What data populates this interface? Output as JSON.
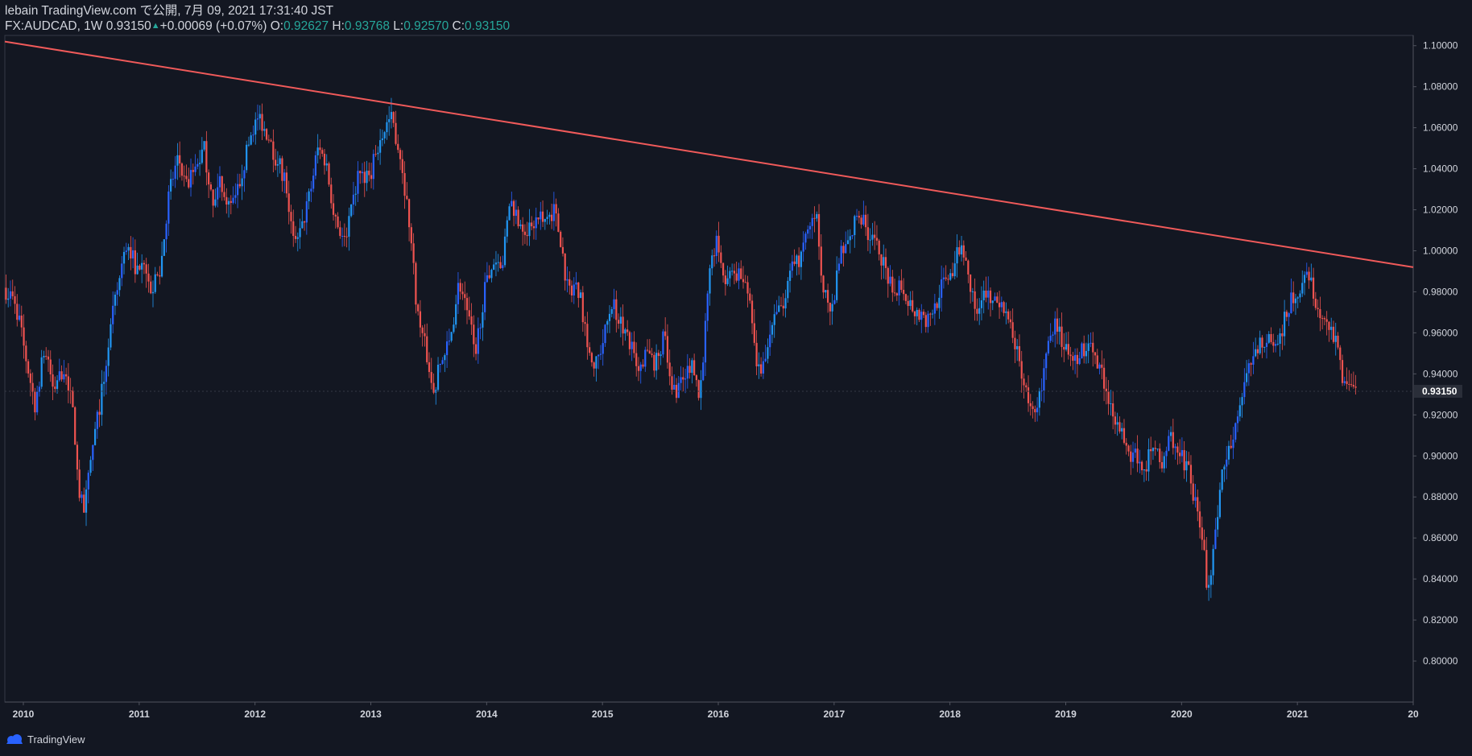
{
  "header": {
    "publisher": "lebain TradingView.com で公開, 7月 09, 2021 17:31:40 JST",
    "symbol_info": "FX:AUDCAD, 1W 0.93150",
    "change": "+0.00069 (+0.07%)",
    "o_label": "O:",
    "o_value": "0.92627",
    "h_label": "H:",
    "h_value": "0.93768",
    "l_label": "L:",
    "l_value": "0.92570",
    "c_label": "C:",
    "c_value": "0.93150"
  },
  "footer": {
    "brand": "TradingView"
  },
  "colors": {
    "background": "#131722",
    "up": "#2962ff",
    "up_alt": "#2196f3",
    "down": "#ef5350",
    "trendline": "#f05a5a",
    "axis_text": "#d1d4dc",
    "ohlc_value": "#26a69a"
  },
  "chart_data": {
    "type": "candlestick",
    "timeframe": "1W",
    "symbol": "FX:AUDCAD",
    "x_ticks": [
      "2010",
      "2011",
      "2012",
      "2013",
      "2014",
      "2015",
      "2016",
      "2017",
      "2018",
      "2019",
      "2020",
      "2021",
      "20"
    ],
    "y_ticks": [
      "1.10000",
      "1.08000",
      "1.06000",
      "1.04000",
      "1.02000",
      "1.00000",
      "0.98000",
      "0.96000",
      "0.94000",
      "0.92000",
      "0.90000",
      "0.88000",
      "0.86000",
      "0.84000",
      "0.82000",
      "0.80000"
    ],
    "ylim": [
      0.78,
      1.105
    ],
    "xlim_years": [
      2009.84,
      2022.0
    ],
    "last_price": "0.93150",
    "price_path": [
      [
        2009.85,
        0.982
      ],
      [
        2009.95,
        0.975
      ],
      [
        2010.05,
        0.945
      ],
      [
        2010.12,
        0.925
      ],
      [
        2010.2,
        0.952
      ],
      [
        2010.28,
        0.932
      ],
      [
        2010.38,
        0.945
      ],
      [
        2010.45,
        0.92
      ],
      [
        2010.5,
        0.88
      ],
      [
        2010.55,
        0.875
      ],
      [
        2010.62,
        0.905
      ],
      [
        2010.7,
        0.932
      ],
      [
        2010.78,
        0.965
      ],
      [
        2010.86,
        0.99
      ],
      [
        2010.92,
        1.005
      ],
      [
        2011.0,
        0.99
      ],
      [
        2011.05,
        1.0
      ],
      [
        2011.12,
        0.98
      ],
      [
        2011.2,
        0.99
      ],
      [
        2011.28,
        1.03
      ],
      [
        2011.36,
        1.045
      ],
      [
        2011.42,
        1.03
      ],
      [
        2011.5,
        1.04
      ],
      [
        2011.58,
        1.05
      ],
      [
        2011.66,
        1.02
      ],
      [
        2011.72,
        1.035
      ],
      [
        2011.8,
        1.02
      ],
      [
        2011.87,
        1.03
      ],
      [
        2012.0,
        1.06
      ],
      [
        2012.06,
        1.065
      ],
      [
        2012.14,
        1.055
      ],
      [
        2012.2,
        1.045
      ],
      [
        2012.28,
        1.035
      ],
      [
        2012.36,
        1.0
      ],
      [
        2012.42,
        1.01
      ],
      [
        2012.5,
        1.03
      ],
      [
        2012.56,
        1.05
      ],
      [
        2012.62,
        1.045
      ],
      [
        2012.7,
        1.02
      ],
      [
        2012.78,
        1.005
      ],
      [
        2012.84,
        1.015
      ],
      [
        2012.92,
        1.04
      ],
      [
        2013.0,
        1.035
      ],
      [
        2013.08,
        1.05
      ],
      [
        2013.14,
        1.06
      ],
      [
        2013.2,
        1.065
      ],
      [
        2013.28,
        1.045
      ],
      [
        2013.36,
        1.01
      ],
      [
        2013.42,
        0.97
      ],
      [
        2013.5,
        0.95
      ],
      [
        2013.56,
        0.93
      ],
      [
        2013.62,
        0.945
      ],
      [
        2013.7,
        0.955
      ],
      [
        2013.78,
        0.985
      ],
      [
        2013.84,
        0.975
      ],
      [
        2013.92,
        0.95
      ],
      [
        2014.0,
        0.98
      ],
      [
        2014.08,
        0.995
      ],
      [
        2014.16,
        0.995
      ],
      [
        2014.22,
        1.025
      ],
      [
        2014.3,
        1.015
      ],
      [
        2014.36,
        1.01
      ],
      [
        2014.44,
        1.015
      ],
      [
        2014.52,
        1.015
      ],
      [
        2014.6,
        1.02
      ],
      [
        2014.66,
        1.005
      ],
      [
        2014.72,
        0.98
      ],
      [
        2014.8,
        0.985
      ],
      [
        2014.88,
        0.96
      ],
      [
        2014.94,
        0.94
      ],
      [
        2015.02,
        0.955
      ],
      [
        2015.1,
        0.975
      ],
      [
        2015.18,
        0.965
      ],
      [
        2015.26,
        0.955
      ],
      [
        2015.32,
        0.94
      ],
      [
        2015.4,
        0.95
      ],
      [
        2015.48,
        0.945
      ],
      [
        2015.56,
        0.96
      ],
      [
        2015.62,
        0.93
      ],
      [
        2015.7,
        0.935
      ],
      [
        2015.78,
        0.945
      ],
      [
        2015.86,
        0.93
      ],
      [
        2015.94,
        0.985
      ],
      [
        2016.0,
        1.005
      ],
      [
        2016.08,
        0.985
      ],
      [
        2016.16,
        0.99
      ],
      [
        2016.24,
        0.985
      ],
      [
        2016.3,
        0.975
      ],
      [
        2016.36,
        0.94
      ],
      [
        2016.42,
        0.945
      ],
      [
        2016.5,
        0.965
      ],
      [
        2016.58,
        0.975
      ],
      [
        2016.64,
        0.99
      ],
      [
        2016.72,
        0.995
      ],
      [
        2016.8,
        1.01
      ],
      [
        2016.86,
        1.02
      ],
      [
        2016.92,
        0.985
      ],
      [
        2017.0,
        0.97
      ],
      [
        2017.08,
        1.0
      ],
      [
        2017.16,
        1.005
      ],
      [
        2017.22,
        1.02
      ],
      [
        2017.3,
        1.01
      ],
      [
        2017.36,
        1.005
      ],
      [
        2017.44,
        0.995
      ],
      [
        2017.52,
        0.98
      ],
      [
        2017.6,
        0.985
      ],
      [
        2017.66,
        0.975
      ],
      [
        2017.74,
        0.97
      ],
      [
        2017.82,
        0.965
      ],
      [
        2017.9,
        0.975
      ],
      [
        2017.96,
        0.985
      ],
      [
        2018.04,
        0.99
      ],
      [
        2018.12,
        1.005
      ],
      [
        2018.18,
        0.985
      ],
      [
        2018.26,
        0.97
      ],
      [
        2018.34,
        0.98
      ],
      [
        2018.42,
        0.975
      ],
      [
        2018.5,
        0.97
      ],
      [
        2018.58,
        0.955
      ],
      [
        2018.66,
        0.935
      ],
      [
        2018.72,
        0.92
      ],
      [
        2018.8,
        0.93
      ],
      [
        2018.86,
        0.955
      ],
      [
        2018.92,
        0.965
      ],
      [
        2019.0,
        0.955
      ],
      [
        2019.06,
        0.945
      ],
      [
        2019.14,
        0.95
      ],
      [
        2019.2,
        0.955
      ],
      [
        2019.28,
        0.945
      ],
      [
        2019.36,
        0.935
      ],
      [
        2019.44,
        0.92
      ],
      [
        2019.5,
        0.91
      ],
      [
        2019.56,
        0.9
      ],
      [
        2019.64,
        0.9
      ],
      [
        2019.7,
        0.895
      ],
      [
        2019.78,
        0.905
      ],
      [
        2019.86,
        0.895
      ],
      [
        2019.92,
        0.91
      ],
      [
        2020.0,
        0.9
      ],
      [
        2020.08,
        0.895
      ],
      [
        2020.14,
        0.875
      ],
      [
        2020.2,
        0.86
      ],
      [
        2020.24,
        0.835
      ],
      [
        2020.3,
        0.855
      ],
      [
        2020.36,
        0.89
      ],
      [
        2020.42,
        0.9
      ],
      [
        2020.5,
        0.92
      ],
      [
        2020.56,
        0.935
      ],
      [
        2020.62,
        0.945
      ],
      [
        2020.7,
        0.955
      ],
      [
        2020.78,
        0.96
      ],
      [
        2020.86,
        0.955
      ],
      [
        2020.92,
        0.97
      ],
      [
        2021.0,
        0.98
      ],
      [
        2021.08,
        0.985
      ],
      [
        2021.12,
        0.99
      ],
      [
        2021.18,
        0.97
      ],
      [
        2021.24,
        0.965
      ],
      [
        2021.3,
        0.96
      ],
      [
        2021.36,
        0.955
      ],
      [
        2021.42,
        0.935
      ],
      [
        2021.48,
        0.93
      ],
      [
        2021.52,
        0.9315
      ]
    ],
    "trendline": {
      "from": [
        2009.84,
        1.102
      ],
      "to": [
        2022.0,
        0.992
      ]
    }
  }
}
